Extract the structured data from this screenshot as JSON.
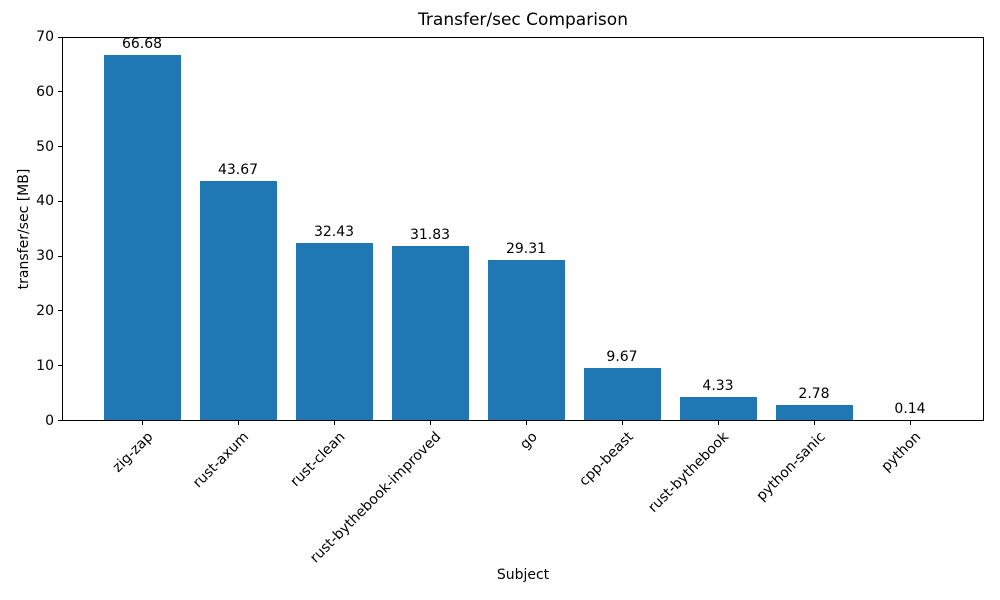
{
  "chart_data": {
    "type": "bar",
    "title": "Transfer/sec Comparison",
    "xlabel": "Subject",
    "ylabel": "transfer/sec [MB]",
    "categories": [
      "zig-zap",
      "rust-axum",
      "rust-clean",
      "rust-bythebook-improved",
      "go",
      "cpp-beast",
      "rust-bythebook",
      "python-sanic",
      "python"
    ],
    "values": [
      66.68,
      43.67,
      32.43,
      31.83,
      29.31,
      9.67,
      4.33,
      2.78,
      0.14
    ],
    "value_labels": [
      "66.68",
      "43.67",
      "32.43",
      "31.83",
      "29.31",
      "9.67",
      "4.33",
      "2.78",
      "0.14"
    ],
    "ylim": [
      0,
      70
    ],
    "yticks": [
      0,
      10,
      20,
      30,
      40,
      50,
      60,
      70
    ],
    "bar_color": "#1f77b4",
    "text_color": "#000000",
    "spine_color": "#000000",
    "grid": false,
    "legend": null,
    "background": "#ffffff"
  }
}
